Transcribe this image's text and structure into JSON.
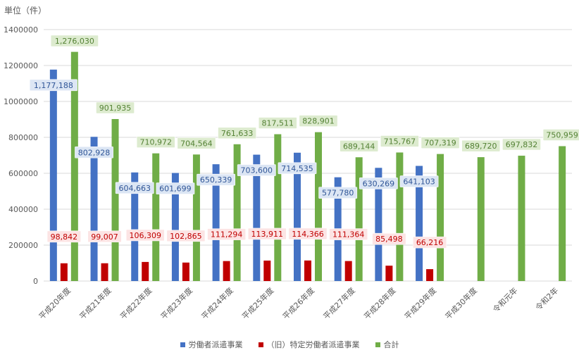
{
  "unit_label": "単位（件）",
  "colors": {
    "worker": "#4472C4",
    "specific": "#C00000",
    "total": "#70AD47",
    "grid": "#D9D9D9",
    "axis_text": "#595959",
    "label_blue_fill": "#DCE6F4",
    "label_blue_text": "#2F5597",
    "label_red_fill": "#FCE4E4",
    "label_red_text": "#C00000",
    "label_green_fill": "#DDEBCF",
    "label_green_text": "#548235"
  },
  "chart_data": {
    "type": "bar",
    "title": "",
    "ylabel": "単位（件）",
    "ylim": [
      0,
      1400000
    ],
    "yticks": [
      "0",
      "200000",
      "400000",
      "600000",
      "800000",
      "1000000",
      "1200000",
      "1400000"
    ],
    "categories": [
      "平成20年度",
      "平成21年度",
      "平成22年度",
      "平成23年度",
      "平成24年度",
      "平成25年度",
      "平成26年度",
      "平成27年度",
      "平成28年度",
      "平成29年度",
      "平成30年度",
      "令和元年",
      "令和2年"
    ],
    "series": [
      {
        "name": "労働者派遣事業",
        "color_key": "worker",
        "values": [
          1177188,
          802928,
          604663,
          601699,
          650339,
          703600,
          714535,
          577780,
          630269,
          641103,
          null,
          null,
          null
        ],
        "labels": [
          "1,177,188",
          "802,928",
          "604,663",
          "601,699",
          "650,339",
          "703,600",
          "714,535",
          "577,780",
          "630,269",
          "641,103",
          "",
          "",
          ""
        ]
      },
      {
        "name": "（旧）特定労働者派遣事業",
        "color_key": "specific",
        "values": [
          98842,
          99007,
          106309,
          102865,
          111294,
          113911,
          114366,
          111364,
          85498,
          66216,
          null,
          null,
          null
        ],
        "labels": [
          "98,842",
          "99,007",
          "106,309",
          "102,865",
          "111,294",
          "113,911",
          "114,366",
          "111,364",
          "85,498",
          "66,216",
          "",
          "",
          ""
        ]
      },
      {
        "name": "合計",
        "color_key": "total",
        "values": [
          1276030,
          901935,
          710972,
          704564,
          761633,
          817511,
          828901,
          689144,
          715767,
          707319,
          689720,
          697832,
          750959
        ],
        "labels": [
          "1,276,030",
          "901,935",
          "710,972",
          "704,564",
          "761,633",
          "817,511",
          "828,901",
          "689,144",
          "715,767",
          "707,319",
          "689,720",
          "697,832",
          "750,959"
        ]
      }
    ],
    "legend_position": "bottom"
  }
}
